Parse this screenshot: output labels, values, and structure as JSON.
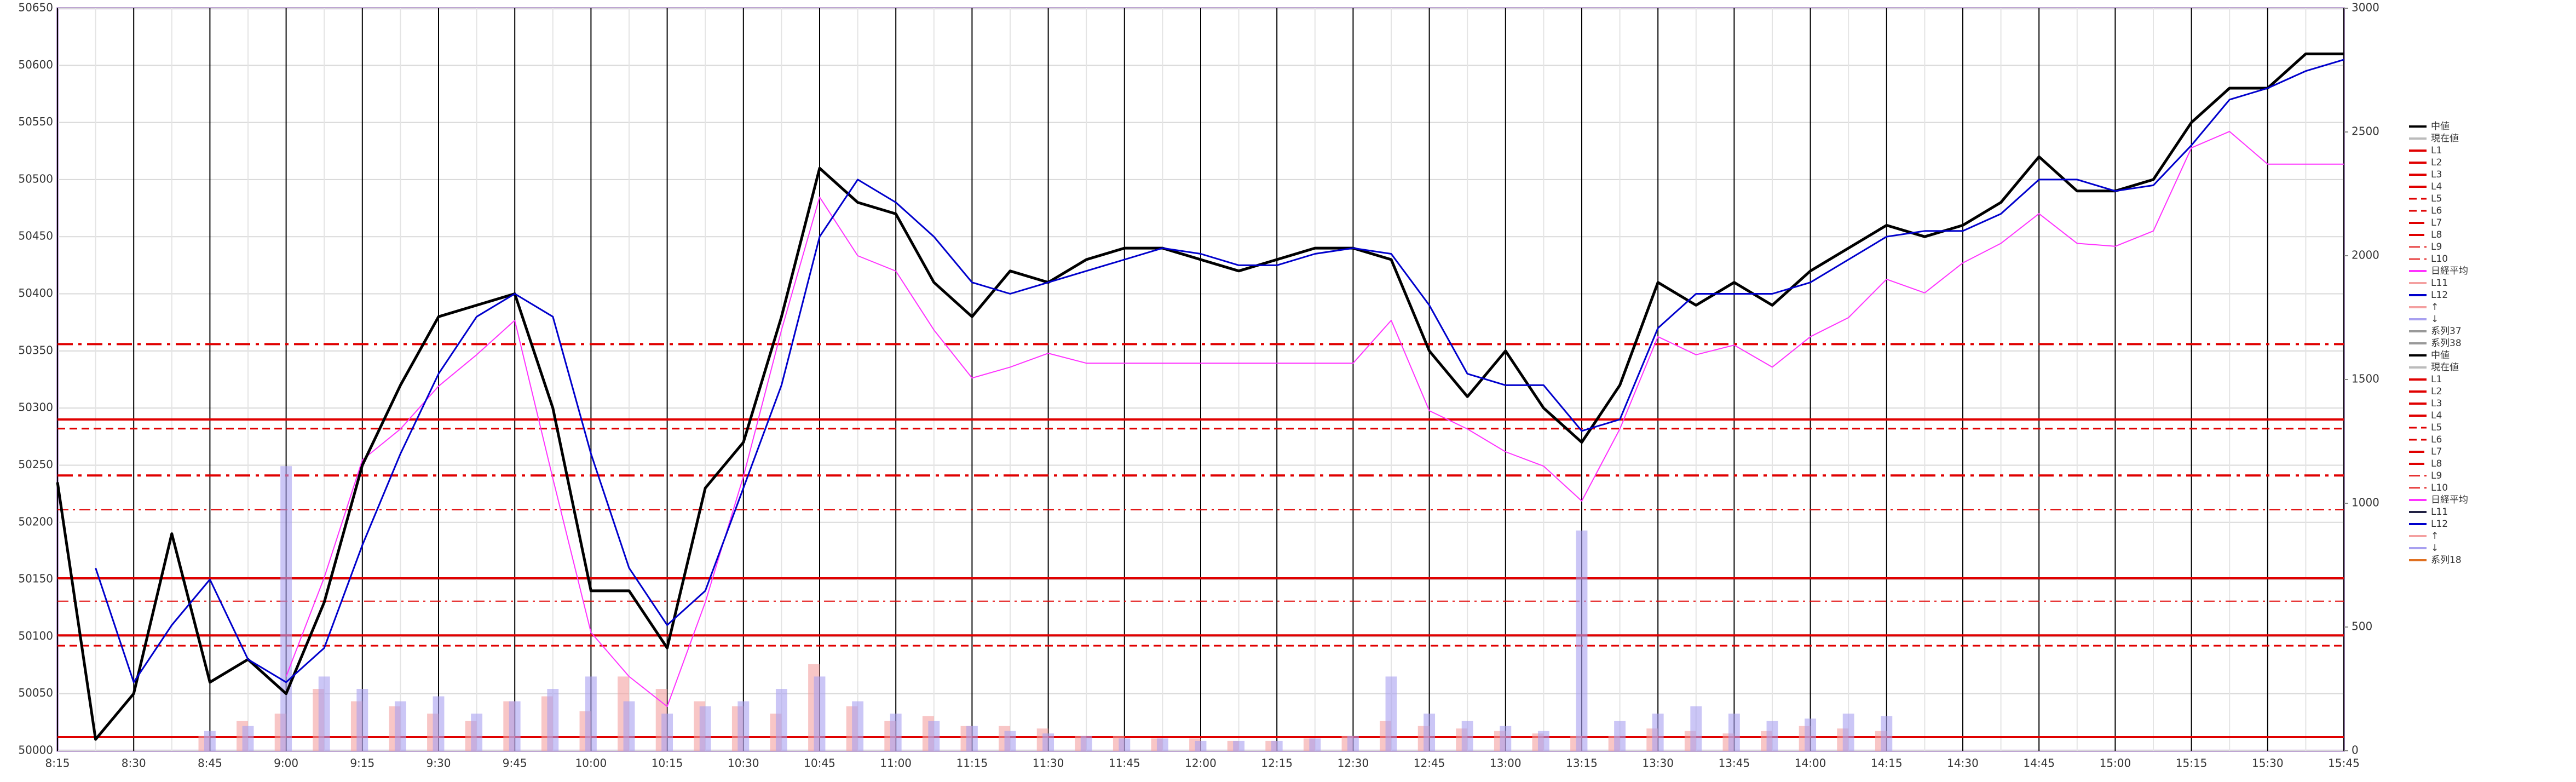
{
  "chart_data": {
    "type": "line",
    "categories": [
      "8:15",
      null,
      "8:30",
      null,
      "8:45",
      null,
      "9:00",
      null,
      "9:15",
      null,
      "9:30",
      null,
      "9:45",
      null,
      "10:00",
      null,
      "10:15",
      null,
      "10:30",
      null,
      "10:45",
      null,
      "11:00",
      null,
      "11:15",
      null,
      "11:30",
      null,
      "11:45",
      null,
      "12:00",
      null,
      "12:15",
      null,
      "12:30",
      null,
      "12:45",
      null,
      "13:00",
      null,
      "13:15",
      null,
      "13:30",
      null,
      "13:45",
      null,
      "14:00",
      null,
      "14:15",
      null,
      "14:30",
      null,
      "14:45",
      null,
      "15:00",
      null,
      "15:15",
      null,
      "15:30",
      null,
      "15:45"
    ],
    "ylim": [
      50000,
      50650
    ],
    "yticks": [
      50000,
      50050,
      50100,
      50150,
      50200,
      50250,
      50300,
      50350,
      50400,
      50450,
      50500,
      50550,
      50600,
      50650
    ],
    "y2lim": [
      0,
      3000
    ],
    "y2ticks": [
      0,
      500,
      1000,
      1500,
      2000,
      2500,
      3000
    ],
    "grid": true,
    "series": [
      {
        "name": "系列37",
        "type": "bar",
        "axis": "y2",
        "color": "#f4a0a0",
        "values": [
          0,
          0,
          0,
          0,
          60,
          120,
          150,
          250,
          200,
          180,
          150,
          120,
          200,
          220,
          160,
          300,
          250,
          200,
          180,
          150,
          350,
          180,
          120,
          140,
          100,
          100,
          90,
          60,
          60,
          50,
          50,
          40,
          40,
          50,
          60,
          120,
          100,
          90,
          80,
          70,
          60,
          60,
          90,
          80,
          70,
          80,
          100,
          90,
          80,
          0,
          0,
          0,
          0,
          0,
          0,
          0,
          0,
          0,
          0,
          0,
          0
        ]
      },
      {
        "name": "系列38",
        "type": "bar",
        "axis": "y2",
        "color": "#a8a0f0",
        "values": [
          0,
          0,
          0,
          0,
          80,
          100,
          1150,
          300,
          250,
          200,
          220,
          150,
          200,
          250,
          300,
          200,
          150,
          180,
          200,
          250,
          300,
          200,
          150,
          120,
          100,
          80,
          70,
          60,
          50,
          50,
          40,
          40,
          40,
          50,
          60,
          300,
          150,
          120,
          100,
          80,
          890,
          120,
          150,
          180,
          150,
          120,
          130,
          150,
          140,
          0,
          0,
          0,
          0,
          0,
          0,
          0,
          0,
          0,
          0,
          0,
          0
        ]
      },
      {
        "name": "日経平均",
        "type": "line",
        "axis": "y2",
        "color": "#ff33ff",
        "width": 2,
        "values": [
          null,
          null,
          null,
          null,
          null,
          null,
          300,
          700,
          1175,
          1300,
          1473,
          1600,
          1739,
          1100,
          478,
          300,
          179,
          600,
          1108,
          1700,
          2237,
          2000,
          1938,
          1700,
          1506,
          1550,
          1606,
          1566,
          1566,
          1566,
          1566,
          1566,
          1566,
          1566,
          1566,
          1739,
          1374,
          1300,
          1208,
          1150,
          1009,
          1300,
          1673,
          1600,
          1639,
          1550,
          1673,
          1750,
          1905,
          1850,
          1971,
          2050,
          2170,
          2050,
          2038,
          2100,
          2436,
          2502,
          2370,
          2370,
          2370
        ]
      },
      {
        "name": "中値",
        "type": "line",
        "color": "#000000",
        "width": 5,
        "values": [
          50235,
          50010,
          50050,
          50190,
          50060,
          50080,
          50050,
          50130,
          50250,
          50320,
          50380,
          50390,
          50400,
          50300,
          50140,
          50140,
          50090,
          50230,
          50270,
          50380,
          50510,
          50480,
          50470,
          50410,
          50380,
          50420,
          50410,
          50430,
          50440,
          50440,
          50430,
          50420,
          50430,
          50440,
          50440,
          50430,
          50350,
          50310,
          50350,
          50300,
          50270,
          50320,
          50410,
          50390,
          50410,
          50390,
          50420,
          50440,
          50460,
          50450,
          50460,
          50480,
          50520,
          50490,
          50490,
          50500,
          50550,
          50580,
          50580,
          50610,
          50610
        ]
      },
      {
        "name": "L12",
        "type": "line",
        "color": "#0000cc",
        "width": 3,
        "values": [
          null,
          50160,
          50060,
          50110,
          50150,
          50080,
          50060,
          50090,
          50180,
          50260,
          50330,
          50380,
          50400,
          50380,
          50260,
          50160,
          50110,
          50140,
          50230,
          50320,
          50450,
          50500,
          50480,
          50450,
          50410,
          50400,
          50410,
          50420,
          50430,
          50440,
          50435,
          50425,
          50425,
          50435,
          50440,
          50435,
          50390,
          50330,
          50320,
          50320,
          50280,
          50290,
          50370,
          50400,
          50400,
          50400,
          50410,
          50430,
          50450,
          50455,
          50455,
          50470,
          50500,
          50500,
          50490,
          50495,
          50530,
          50570,
          50580,
          50595,
          50605
        ]
      }
    ],
    "levels": [
      {
        "name": "L1",
        "value": 50290,
        "dash": "solid"
      },
      {
        "name": "L2",
        "value": 50282,
        "dash": "dash"
      },
      {
        "name": "L3",
        "value": 50356,
        "dash": "dashdot"
      },
      {
        "name": "L4",
        "value": 50241,
        "dash": "dashdot"
      },
      {
        "name": "L5",
        "value": 50211,
        "dash": "thindashdot"
      },
      {
        "name": "L6",
        "value": 50151,
        "dash": "solid"
      },
      {
        "name": "L7",
        "value": 50131,
        "dash": "thindashdot"
      },
      {
        "name": "L8",
        "value": 50101,
        "dash": "solid"
      },
      {
        "name": "L9",
        "value": 50092,
        "dash": "dash"
      },
      {
        "name": "L10",
        "value": 50012,
        "dash": "solid"
      }
    ],
    "level_color": "#e00000",
    "legend_position": "right",
    "legend": [
      {
        "name": "中値",
        "color": "#000000",
        "dash": "solid"
      },
      {
        "name": "現在値",
        "color": "#bbbbbb",
        "dash": "solid"
      },
      {
        "name": "L1",
        "color": "#e00000",
        "dash": "solid"
      },
      {
        "name": "L2",
        "color": "#e00000",
        "dash": "solid"
      },
      {
        "name": "L3",
        "color": "#e00000",
        "dash": "solid"
      },
      {
        "name": "L4",
        "color": "#e00000",
        "dash": "solid"
      },
      {
        "name": "L5",
        "color": "#e00000",
        "dash": "dash"
      },
      {
        "name": "L6",
        "color": "#e00000",
        "dash": "dash"
      },
      {
        "name": "L7",
        "color": "#e00000",
        "dash": "dashdot"
      },
      {
        "name": "L8",
        "color": "#e00000",
        "dash": "dashdot"
      },
      {
        "name": "L9",
        "color": "#e00000",
        "dash": "thindashdot"
      },
      {
        "name": "L10",
        "color": "#e00000",
        "dash": "thindashdot"
      },
      {
        "name": "日経平均",
        "color": "#ff33ff",
        "dash": "solid"
      },
      {
        "name": "L11",
        "color": "#f4a0a0",
        "dash": "solid"
      },
      {
        "name": "L12",
        "color": "#0000cc",
        "dash": "solid"
      },
      {
        "name": "↑",
        "color": "#f4a0a0",
        "dash": "solid"
      },
      {
        "name": "↓",
        "color": "#a8a0f0",
        "dash": "solid"
      },
      {
        "name": "系列37",
        "color": "#999999",
        "dash": "solid"
      },
      {
        "name": "系列38",
        "color": "#999999",
        "dash": "solid"
      },
      {
        "name": "中値",
        "color": "#000000",
        "dash": "solid"
      },
      {
        "name": "現在値",
        "color": "#bbbbbb",
        "dash": "solid"
      },
      {
        "name": "L1",
        "color": "#e00000",
        "dash": "solid"
      },
      {
        "name": "L2",
        "color": "#e00000",
        "dash": "solid"
      },
      {
        "name": "L3",
        "color": "#e00000",
        "dash": "solid"
      },
      {
        "name": "L4",
        "color": "#e00000",
        "dash": "solid"
      },
      {
        "name": "L5",
        "color": "#e00000",
        "dash": "dash"
      },
      {
        "name": "L6",
        "color": "#e00000",
        "dash": "dash"
      },
      {
        "name": "L7",
        "color": "#e00000",
        "dash": "dashdot"
      },
      {
        "name": "L8",
        "color": "#e00000",
        "dash": "dashdot"
      },
      {
        "name": "L9",
        "color": "#e00000",
        "dash": "thindashdot"
      },
      {
        "name": "L10",
        "color": "#e00000",
        "dash": "thindashdot"
      },
      {
        "name": "日経平均",
        "color": "#ff33ff",
        "dash": "solid"
      },
      {
        "name": "L11",
        "color": "#222244",
        "dash": "solid"
      },
      {
        "name": "L12",
        "color": "#0000cc",
        "dash": "solid"
      },
      {
        "name": "↑",
        "color": "#f4a0a0",
        "dash": "solid"
      },
      {
        "name": "↓",
        "color": "#a8a0f0",
        "dash": "solid"
      },
      {
        "name": "系列18",
        "color": "#e07020",
        "dash": "solid"
      }
    ]
  }
}
